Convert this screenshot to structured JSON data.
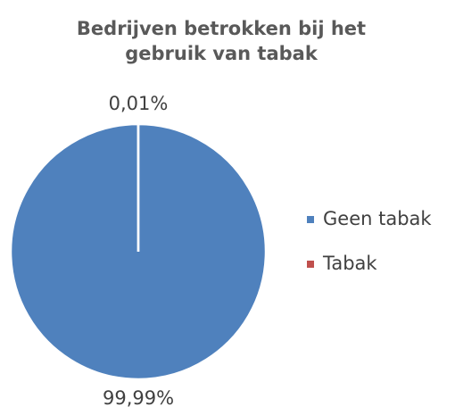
{
  "chart_data": {
    "type": "pie",
    "title": "Bedrijven betrokken bij het gebruik van tabak",
    "categories": [
      "Geen tabak",
      "Tabak"
    ],
    "values": [
      99.99,
      0.01
    ],
    "value_labels": [
      "99,99%",
      "0,01%"
    ],
    "colors": [
      "#4f81bd",
      "#c0504d"
    ],
    "legend": "right"
  }
}
